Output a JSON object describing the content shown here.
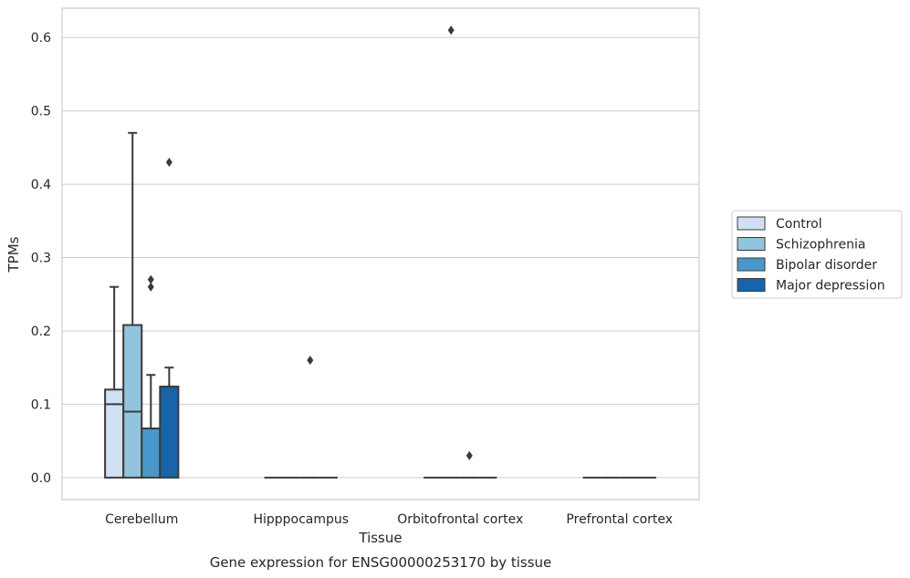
{
  "chart_data": {
    "type": "box",
    "caption": "Gene expression for ENSG00000253170 by tissue",
    "xlabel": "Tissue",
    "ylabel": "TPMs",
    "ylim": [
      -0.03,
      0.64
    ],
    "yticks": [
      0.0,
      0.1,
      0.2,
      0.3,
      0.4,
      0.5,
      0.6
    ],
    "ytick_labels": [
      "0.0",
      "0.1",
      "0.2",
      "0.3",
      "0.4",
      "0.5",
      "0.6"
    ],
    "grid": true,
    "legend_position": "right",
    "categories": [
      "Cerebellum",
      "Hipppocampus",
      "Orbitofrontal cortex",
      "Prefrontal cortex"
    ],
    "series": [
      {
        "name": "Control",
        "color": "#cfe1f2",
        "boxes": [
          {
            "q1": 0.0,
            "median": 0.1,
            "q3": 0.12,
            "whisker_low": 0.0,
            "whisker_high": 0.26,
            "outliers": []
          },
          {
            "q1": 0.0,
            "median": 0.0,
            "q3": 0.0,
            "whisker_low": 0.0,
            "whisker_high": 0.0,
            "outliers": []
          },
          {
            "q1": 0.0,
            "median": 0.0,
            "q3": 0.0,
            "whisker_low": 0.0,
            "whisker_high": 0.0,
            "outliers": []
          },
          {
            "q1": 0.0,
            "median": 0.0,
            "q3": 0.0,
            "whisker_low": 0.0,
            "whisker_high": 0.0,
            "outliers": []
          }
        ]
      },
      {
        "name": "Schizophrenia",
        "color": "#93c4de",
        "boxes": [
          {
            "q1": 0.0,
            "median": 0.09,
            "q3": 0.208,
            "whisker_low": 0.0,
            "whisker_high": 0.47,
            "outliers": []
          },
          {
            "q1": 0.0,
            "median": 0.0,
            "q3": 0.0,
            "whisker_low": 0.0,
            "whisker_high": 0.0,
            "outliers": []
          },
          {
            "q1": 0.0,
            "median": 0.0,
            "q3": 0.0,
            "whisker_low": 0.0,
            "whisker_high": 0.0,
            "outliers": [
              0.61
            ]
          },
          {
            "q1": 0.0,
            "median": 0.0,
            "q3": 0.0,
            "whisker_low": 0.0,
            "whisker_high": 0.0,
            "outliers": []
          }
        ]
      },
      {
        "name": "Bipolar disorder",
        "color": "#4a98c9",
        "boxes": [
          {
            "q1": 0.0,
            "median": 0.067,
            "q3": 0.067,
            "whisker_low": 0.0,
            "whisker_high": 0.14,
            "outliers": [
              0.27,
              0.26
            ]
          },
          {
            "q1": 0.0,
            "median": 0.0,
            "q3": 0.0,
            "whisker_low": 0.0,
            "whisker_high": 0.0,
            "outliers": [
              0.16
            ]
          },
          {
            "q1": 0.0,
            "median": 0.0,
            "q3": 0.0,
            "whisker_low": 0.0,
            "whisker_high": 0.0,
            "outliers": [
              0.03
            ]
          },
          {
            "q1": 0.0,
            "median": 0.0,
            "q3": 0.0,
            "whisker_low": 0.0,
            "whisker_high": 0.0,
            "outliers": []
          }
        ]
      },
      {
        "name": "Major depression",
        "color": "#1764ab",
        "boxes": [
          {
            "q1": 0.0,
            "median": 0.124,
            "q3": 0.124,
            "whisker_low": 0.0,
            "whisker_high": 0.15,
            "outliers": [
              0.43
            ]
          },
          {
            "q1": 0.0,
            "median": 0.0,
            "q3": 0.0,
            "whisker_low": 0.0,
            "whisker_high": 0.0,
            "outliers": []
          },
          {
            "q1": 0.0,
            "median": 0.0,
            "q3": 0.0,
            "whisker_low": 0.0,
            "whisker_high": 0.0,
            "outliers": []
          },
          {
            "q1": 0.0,
            "median": 0.0,
            "q3": 0.0,
            "whisker_low": 0.0,
            "whisker_high": 0.0,
            "outliers": []
          }
        ]
      }
    ]
  }
}
